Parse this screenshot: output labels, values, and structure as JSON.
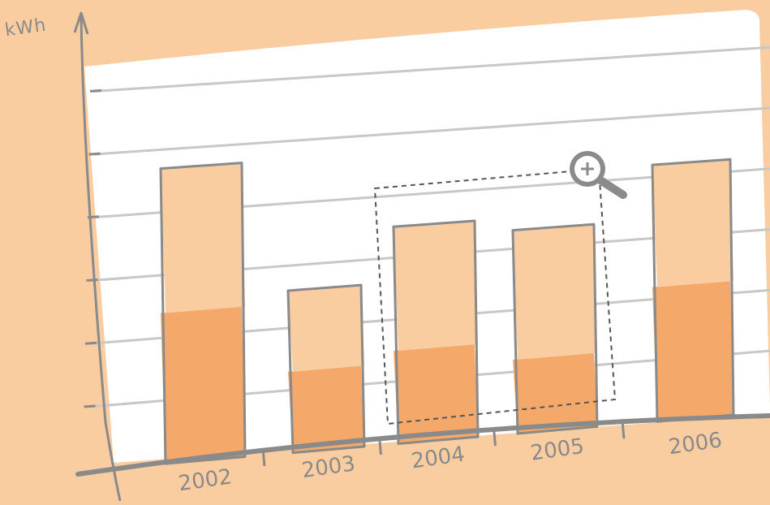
{
  "colors": {
    "background": "#facda1",
    "bar_light": "#facda1",
    "bar_dark": "#f4a96a",
    "axis": "#8a8a8a",
    "grid": "#c8c8c8",
    "paper": "#ffffff",
    "zoom_icon": "#8a8a8a"
  },
  "zoom_icon": "magnifier-plus-icon",
  "chart_data": {
    "type": "bar",
    "stacked": true,
    "categories": [
      "2002",
      "2003",
      "2004",
      "2005",
      "2006"
    ],
    "series": [
      {
        "values": [
          2.4,
          1.3,
          1.5,
          1.2,
          2.2
        ]
      },
      {
        "values": [
          2.3,
          1.3,
          2.0,
          2.1,
          2.0
        ]
      }
    ],
    "xlabel": "",
    "ylabel": "kWh",
    "ylim": [
      0,
      6
    ],
    "grid": true,
    "y_tick_labels": false,
    "zoom_selection": [
      "2004",
      "2005"
    ]
  }
}
